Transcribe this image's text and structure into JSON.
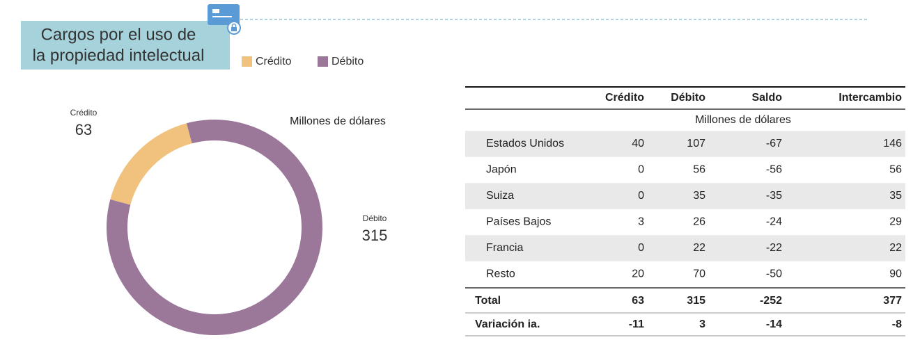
{
  "header": {
    "title": [
      "Cargos por el uso de",
      "la propiedad intelectual"
    ]
  },
  "chart_data": {
    "type": "donut",
    "subtitle": "Millones de dólares",
    "categories": [
      "Crédito",
      "Débito"
    ],
    "values": [
      63,
      315
    ],
    "colors": [
      "#f1c27d",
      "#9b7799"
    ]
  },
  "table": {
    "columns": [
      "Crédito",
      "Débito",
      "Saldo",
      "Intercambio"
    ],
    "unit": "Millones de dólares",
    "rows": [
      {
        "label": "Estados Unidos",
        "values": [
          40,
          107,
          -67,
          146
        ]
      },
      {
        "label": "Japón",
        "values": [
          0,
          56,
          -56,
          56
        ]
      },
      {
        "label": "Suiza",
        "values": [
          0,
          35,
          -35,
          35
        ]
      },
      {
        "label": "Países Bajos",
        "values": [
          3,
          26,
          -24,
          29
        ]
      },
      {
        "label": "Francia",
        "values": [
          0,
          22,
          -22,
          22
        ]
      },
      {
        "label": "Resto",
        "values": [
          20,
          70,
          -50,
          90
        ]
      }
    ],
    "total": {
      "label": "Total",
      "values": [
        63,
        315,
        -252,
        377
      ]
    },
    "variation": {
      "label": "Variación ia.",
      "values": [
        -11,
        3,
        -14,
        -8
      ]
    }
  }
}
